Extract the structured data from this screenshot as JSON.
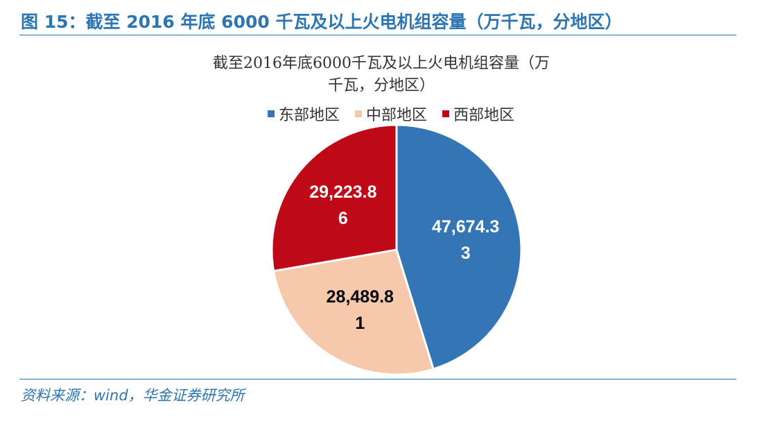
{
  "figure": {
    "title": "图 15：截至 2016 年底 6000 千瓦及以上火电机组容量（万千瓦，分地区）",
    "source": "资料来源：wind，华金证券研究所"
  },
  "chart_data": {
    "type": "pie",
    "title_line1": "截至2016年底6000千瓦及以上火电机组容量（万",
    "title_line2": "千瓦，分地区）",
    "legend_position": "top",
    "categories": [
      "东部地区",
      "中部地区",
      "西部地区"
    ],
    "values": [
      47674.33,
      28489.81,
      29223.86
    ],
    "label_lines": [
      [
        "47,674.3",
        "3"
      ],
      [
        "28,489.8",
        "1"
      ],
      [
        "29,223.8",
        "6"
      ]
    ],
    "colors": [
      "#3375b5",
      "#f6c9ad",
      "#c00916"
    ],
    "label_colors": [
      "#ffffff",
      "#000000",
      "#ffffff"
    ]
  }
}
